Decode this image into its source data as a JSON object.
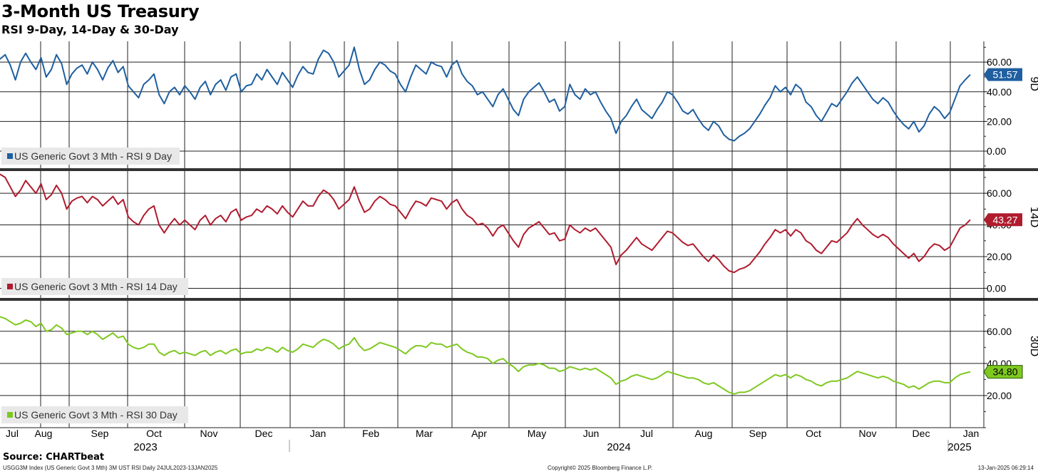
{
  "header": {
    "title": "3-Month US Treasury",
    "subtitle": "RSI 9-Day, 14-Day & 30-Day"
  },
  "footer": {
    "source": "Source: CHARTbeat",
    "index_info": "USGG3M Index (US Generic Govt 3 Mth) 3M UST RSI  Daily 24JUL2023-13JAN2025",
    "copyright": "Copyright© 2025 Bloomberg Finance L.P.",
    "timestamp": "13-Jan-2025 06:29:14"
  },
  "chart_data": {
    "type": "line",
    "x_range": [
      "2023-07-03",
      "2025-01-13"
    ],
    "month_ticks": [
      "Jul",
      "Aug",
      "Sep",
      "Oct",
      "Nov",
      "Dec",
      "Jan",
      "Feb",
      "Mar",
      "Apr",
      "May",
      "Jun",
      "Jul",
      "Aug",
      "Sep",
      "Oct",
      "Nov",
      "Dec",
      "Jan"
    ],
    "year_labels": [
      "2023",
      "2024",
      "2025"
    ],
    "panels": [
      {
        "axis_title": "9D",
        "ylim": [
          -12,
          74
        ],
        "ticks": [
          "60.00",
          "40.00",
          "20.00",
          "0.00"
        ],
        "tick_values": [
          60,
          40,
          20,
          0
        ],
        "legend": "US Generic Govt 3 Mth - RSI 9 Day",
        "color": "#1f5fa0",
        "last_label": "51.57",
        "last_value": 51.57,
        "series_name": "US Generic Govt 3 Mth - RSI 9 Day",
        "values": [
          62,
          65,
          58,
          48,
          60,
          66,
          60,
          55,
          63,
          50,
          55,
          65,
          59,
          45,
          52,
          56,
          58,
          52,
          60,
          55,
          48,
          56,
          61,
          53,
          57,
          44,
          40,
          36,
          45,
          48,
          52,
          38,
          32,
          40,
          43,
          38,
          44,
          40,
          35,
          43,
          47,
          38,
          45,
          48,
          41,
          50,
          52,
          40,
          44,
          45,
          52,
          48,
          55,
          50,
          45,
          53,
          48,
          43,
          51,
          57,
          53,
          52,
          62,
          68,
          66,
          60,
          50,
          54,
          58,
          70,
          55,
          45,
          48,
          55,
          60,
          58,
          54,
          52,
          45,
          40,
          50,
          58,
          55,
          52,
          60,
          58,
          57,
          50,
          58,
          61,
          52,
          47,
          44,
          38,
          40,
          35,
          30,
          38,
          42,
          35,
          28,
          24,
          35,
          40,
          43,
          46,
          40,
          33,
          35,
          27,
          30,
          45,
          38,
          35,
          42,
          38,
          40,
          33,
          27,
          22,
          12,
          20,
          24,
          30,
          35,
          28,
          25,
          22,
          28,
          33,
          40,
          38,
          33,
          27,
          25,
          28,
          22,
          17,
          14,
          20,
          17,
          11,
          8,
          7,
          10,
          12,
          15,
          20,
          25,
          31,
          36,
          44,
          40,
          43,
          38,
          45,
          42,
          33,
          30,
          24,
          20,
          26,
          32,
          30,
          35,
          40,
          46,
          50,
          45,
          40,
          35,
          32,
          36,
          33,
          27,
          22,
          18,
          15,
          20,
          13,
          17,
          25,
          30,
          27,
          22,
          26,
          35,
          44,
          48,
          51.57
        ]
      },
      {
        "axis_title": "14D",
        "ylim": [
          -7,
          74
        ],
        "ticks": [
          "60.00",
          "40.00",
          "20.00",
          "0.00"
        ],
        "tick_values": [
          60,
          40,
          20,
          0
        ],
        "legend": "US Generic Govt 3 Mth - RSI 14 Day",
        "color": "#b01b2e",
        "last_label": "43.27",
        "last_value": 43.27,
        "series_name": "US Generic Govt 3 Mth - RSI 14 Day",
        "values": [
          72,
          70,
          64,
          58,
          62,
          68,
          64,
          60,
          66,
          56,
          59,
          65,
          60,
          50,
          55,
          57,
          58,
          54,
          58,
          56,
          52,
          55,
          58,
          53,
          56,
          45,
          42,
          40,
          46,
          50,
          52,
          40,
          35,
          40,
          44,
          40,
          43,
          40,
          37,
          43,
          46,
          40,
          44,
          46,
          42,
          48,
          50,
          43,
          45,
          46,
          50,
          48,
          52,
          50,
          47,
          52,
          48,
          45,
          50,
          55,
          52,
          52,
          58,
          62,
          60,
          56,
          50,
          53,
          56,
          64,
          55,
          48,
          50,
          55,
          58,
          56,
          53,
          52,
          48,
          44,
          50,
          55,
          54,
          52,
          57,
          56,
          55,
          50,
          54,
          56,
          50,
          46,
          44,
          40,
          41,
          38,
          33,
          38,
          40,
          35,
          30,
          26,
          34,
          38,
          40,
          42,
          38,
          34,
          35,
          30,
          31,
          40,
          37,
          35,
          38,
          36,
          38,
          34,
          30,
          26,
          15,
          21,
          24,
          28,
          32,
          28,
          26,
          24,
          28,
          32,
          36,
          35,
          32,
          29,
          27,
          28,
          24,
          20,
          17,
          21,
          18,
          14,
          11,
          10,
          12,
          13,
          15,
          19,
          23,
          28,
          32,
          37,
          35,
          37,
          33,
          37,
          35,
          30,
          28,
          24,
          22,
          26,
          30,
          29,
          32,
          35,
          40,
          44,
          40,
          37,
          34,
          32,
          34,
          32,
          28,
          25,
          22,
          19,
          22,
          17,
          20,
          25,
          28,
          27,
          24,
          26,
          32,
          38,
          40,
          43.27
        ]
      },
      {
        "axis_title": "30D",
        "ylim": [
          0,
          79
        ],
        "ticks": [
          "60.00",
          "40.00",
          "20.00"
        ],
        "tick_values": [
          60,
          40,
          20
        ],
        "legend": "US Generic Govt 3 Mth - RSI 30 Day",
        "color": "#7ec820",
        "last_label": "34.80",
        "last_value": 34.8,
        "series_name": "US Generic Govt 3 Mth - RSI 30 Day",
        "values": [
          69,
          68,
          66,
          64,
          65,
          67,
          66,
          63,
          65,
          60,
          61,
          64,
          62,
          58,
          59,
          60,
          60,
          58,
          60,
          58,
          55,
          57,
          59,
          56,
          57,
          52,
          50,
          49,
          50,
          52,
          52,
          47,
          45,
          47,
          48,
          46,
          47,
          46,
          45,
          47,
          48,
          45,
          47,
          48,
          46,
          48,
          49,
          46,
          47,
          47,
          49,
          48,
          50,
          49,
          47,
          50,
          48,
          47,
          49,
          52,
          51,
          50,
          53,
          55,
          54,
          52,
          49,
          51,
          52,
          56,
          51,
          48,
          49,
          51,
          53,
          52,
          51,
          50,
          48,
          46,
          49,
          51,
          51,
          50,
          53,
          52,
          52,
          50,
          51,
          52,
          49,
          47,
          46,
          44,
          44,
          43,
          40,
          42,
          43,
          40,
          38,
          35,
          38,
          39,
          39,
          40,
          39,
          37,
          37,
          35,
          36,
          38,
          37,
          36,
          37,
          36,
          37,
          35,
          33,
          31,
          27,
          29,
          30,
          32,
          33,
          32,
          31,
          30,
          31,
          33,
          35,
          34,
          33,
          32,
          31,
          31,
          30,
          28,
          27,
          28,
          26,
          24,
          22,
          21,
          22,
          22,
          23,
          25,
          27,
          29,
          31,
          33,
          32,
          33,
          31,
          33,
          32,
          30,
          29,
          27,
          26,
          28,
          29,
          29,
          30,
          31,
          33,
          35,
          34,
          33,
          32,
          31,
          32,
          31,
          29,
          28,
          27,
          25,
          26,
          24,
          26,
          28,
          29,
          29,
          28,
          28,
          31,
          33,
          34,
          34.8
        ]
      }
    ]
  }
}
